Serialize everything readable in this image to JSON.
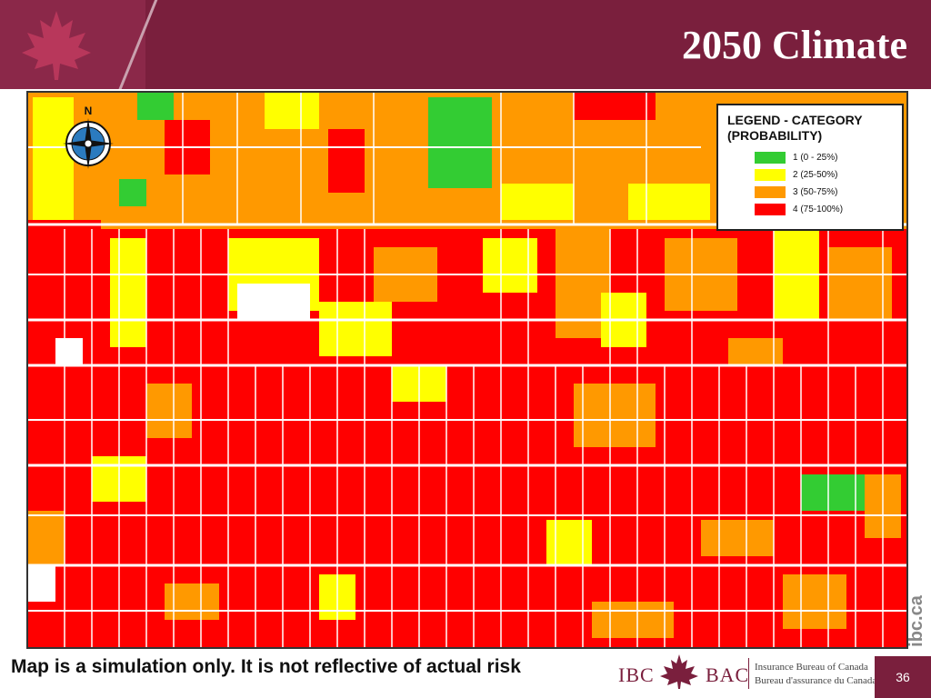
{
  "header": {
    "title": "2050 Climate",
    "background_color": "#7a1f3d",
    "logo_icon": "maple-leaf-icon"
  },
  "map": {
    "compass_label": "N",
    "legend": {
      "title": "LEGEND - CATEGORY (PROBABILITY)",
      "items": [
        {
          "label": "1 (0 - 25%)",
          "color": "#33cc33"
        },
        {
          "label": "2 (25-50%)",
          "color": "#ffff00"
        },
        {
          "label": "3 (50-75%)",
          "color": "#ff9900"
        },
        {
          "label": "4 (75-100%)",
          "color": "#ff0000"
        }
      ]
    }
  },
  "side_text": "ibc.ca",
  "footer": {
    "disclaimer": "Map is a simulation only. It is not reflective of actual risk",
    "logo": {
      "ibc": "IBC",
      "bac": "BAC",
      "name_en": "Insurance Bureau of Canada",
      "name_fr": "Bureau d'assurance du Canada"
    },
    "page_number": "36"
  }
}
